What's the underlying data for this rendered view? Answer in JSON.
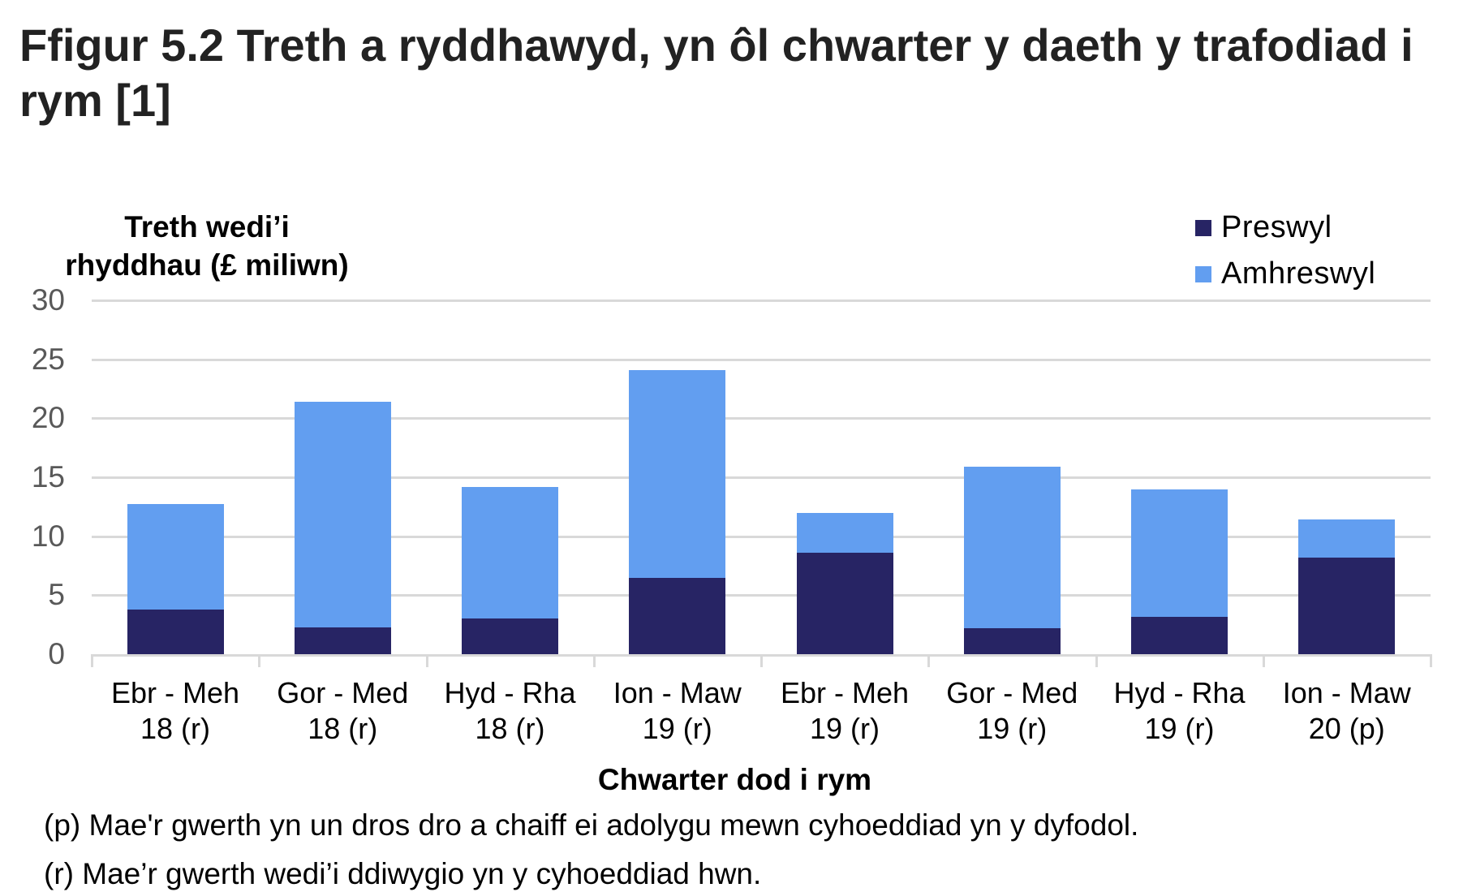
{
  "title": {
    "line1": "Ffigur 5.2  Treth a ryddhawyd, yn ôl chwarter y daeth y trafodiad i",
    "line2": "rym [1]"
  },
  "y_axis_title": {
    "line1": "Treth wedi’i",
    "line2": "rhyddhau (£ miliwn)"
  },
  "x_axis_title": "Chwarter dod i rym",
  "legend": [
    {
      "label": "Preswyl",
      "color": "#272464"
    },
    {
      "label": "Amhreswyl",
      "color": "#629ef0"
    }
  ],
  "y_ticks": [
    "30",
    "25",
    "20",
    "15",
    "10",
    "5",
    "0"
  ],
  "x_labels": [
    {
      "line1": "Ebr - Meh",
      "line2": "18 (r)"
    },
    {
      "line1": "Gor - Med",
      "line2": "18 (r)"
    },
    {
      "line1": "Hyd - Rha",
      "line2": "18 (r)"
    },
    {
      "line1": "Ion - Maw",
      "line2": "19 (r)"
    },
    {
      "line1": "Ebr - Meh",
      "line2": "19 (r)"
    },
    {
      "line1": "Gor - Med",
      "line2": "19 (r)"
    },
    {
      "line1": "Hyd - Rha",
      "line2": "19 (r)"
    },
    {
      "line1": "Ion - Maw",
      "line2": "20 (p)"
    }
  ],
  "footnotes": {
    "p": "(p) Mae'r gwerth yn un dros dro a chaiff ei adolygu mewn cyhoeddiad yn y dyfodol.",
    "r": "(r) Mae’r gwerth wedi’i ddiwygio yn y cyhoeddiad hwn."
  },
  "chart_data": {
    "type": "bar",
    "stacked": true,
    "title": "Ffigur 5.2  Treth a ryddhawyd, yn ôl chwarter y daeth y trafodiad i rym [1]",
    "xlabel": "Chwarter dod i rym",
    "ylabel": "Treth wedi’i rhyddhau (£ miliwn)",
    "ylim": [
      0,
      30
    ],
    "yticks": [
      0,
      5,
      10,
      15,
      20,
      25,
      30
    ],
    "grid": true,
    "legend_position": "top-right",
    "categories": [
      "Ebr - Meh 18 (r)",
      "Gor - Med 18 (r)",
      "Hyd - Rha 18 (r)",
      "Ion - Maw 19 (r)",
      "Ebr - Meh 19 (r)",
      "Gor - Med 19 (r)",
      "Hyd - Rha 19 (r)",
      "Ion - Maw 20 (p)"
    ],
    "series": [
      {
        "name": "Preswyl",
        "color": "#272464",
        "values": [
          3.8,
          2.3,
          3.0,
          6.5,
          8.6,
          2.2,
          3.2,
          8.2
        ]
      },
      {
        "name": "Amhreswyl",
        "color": "#629ef0",
        "values": [
          8.9,
          19.1,
          11.2,
          17.6,
          3.4,
          13.7,
          10.8,
          3.2
        ]
      }
    ],
    "totals": [
      12.7,
      21.4,
      14.2,
      24.1,
      12.0,
      15.9,
      14.0,
      11.4
    ]
  }
}
